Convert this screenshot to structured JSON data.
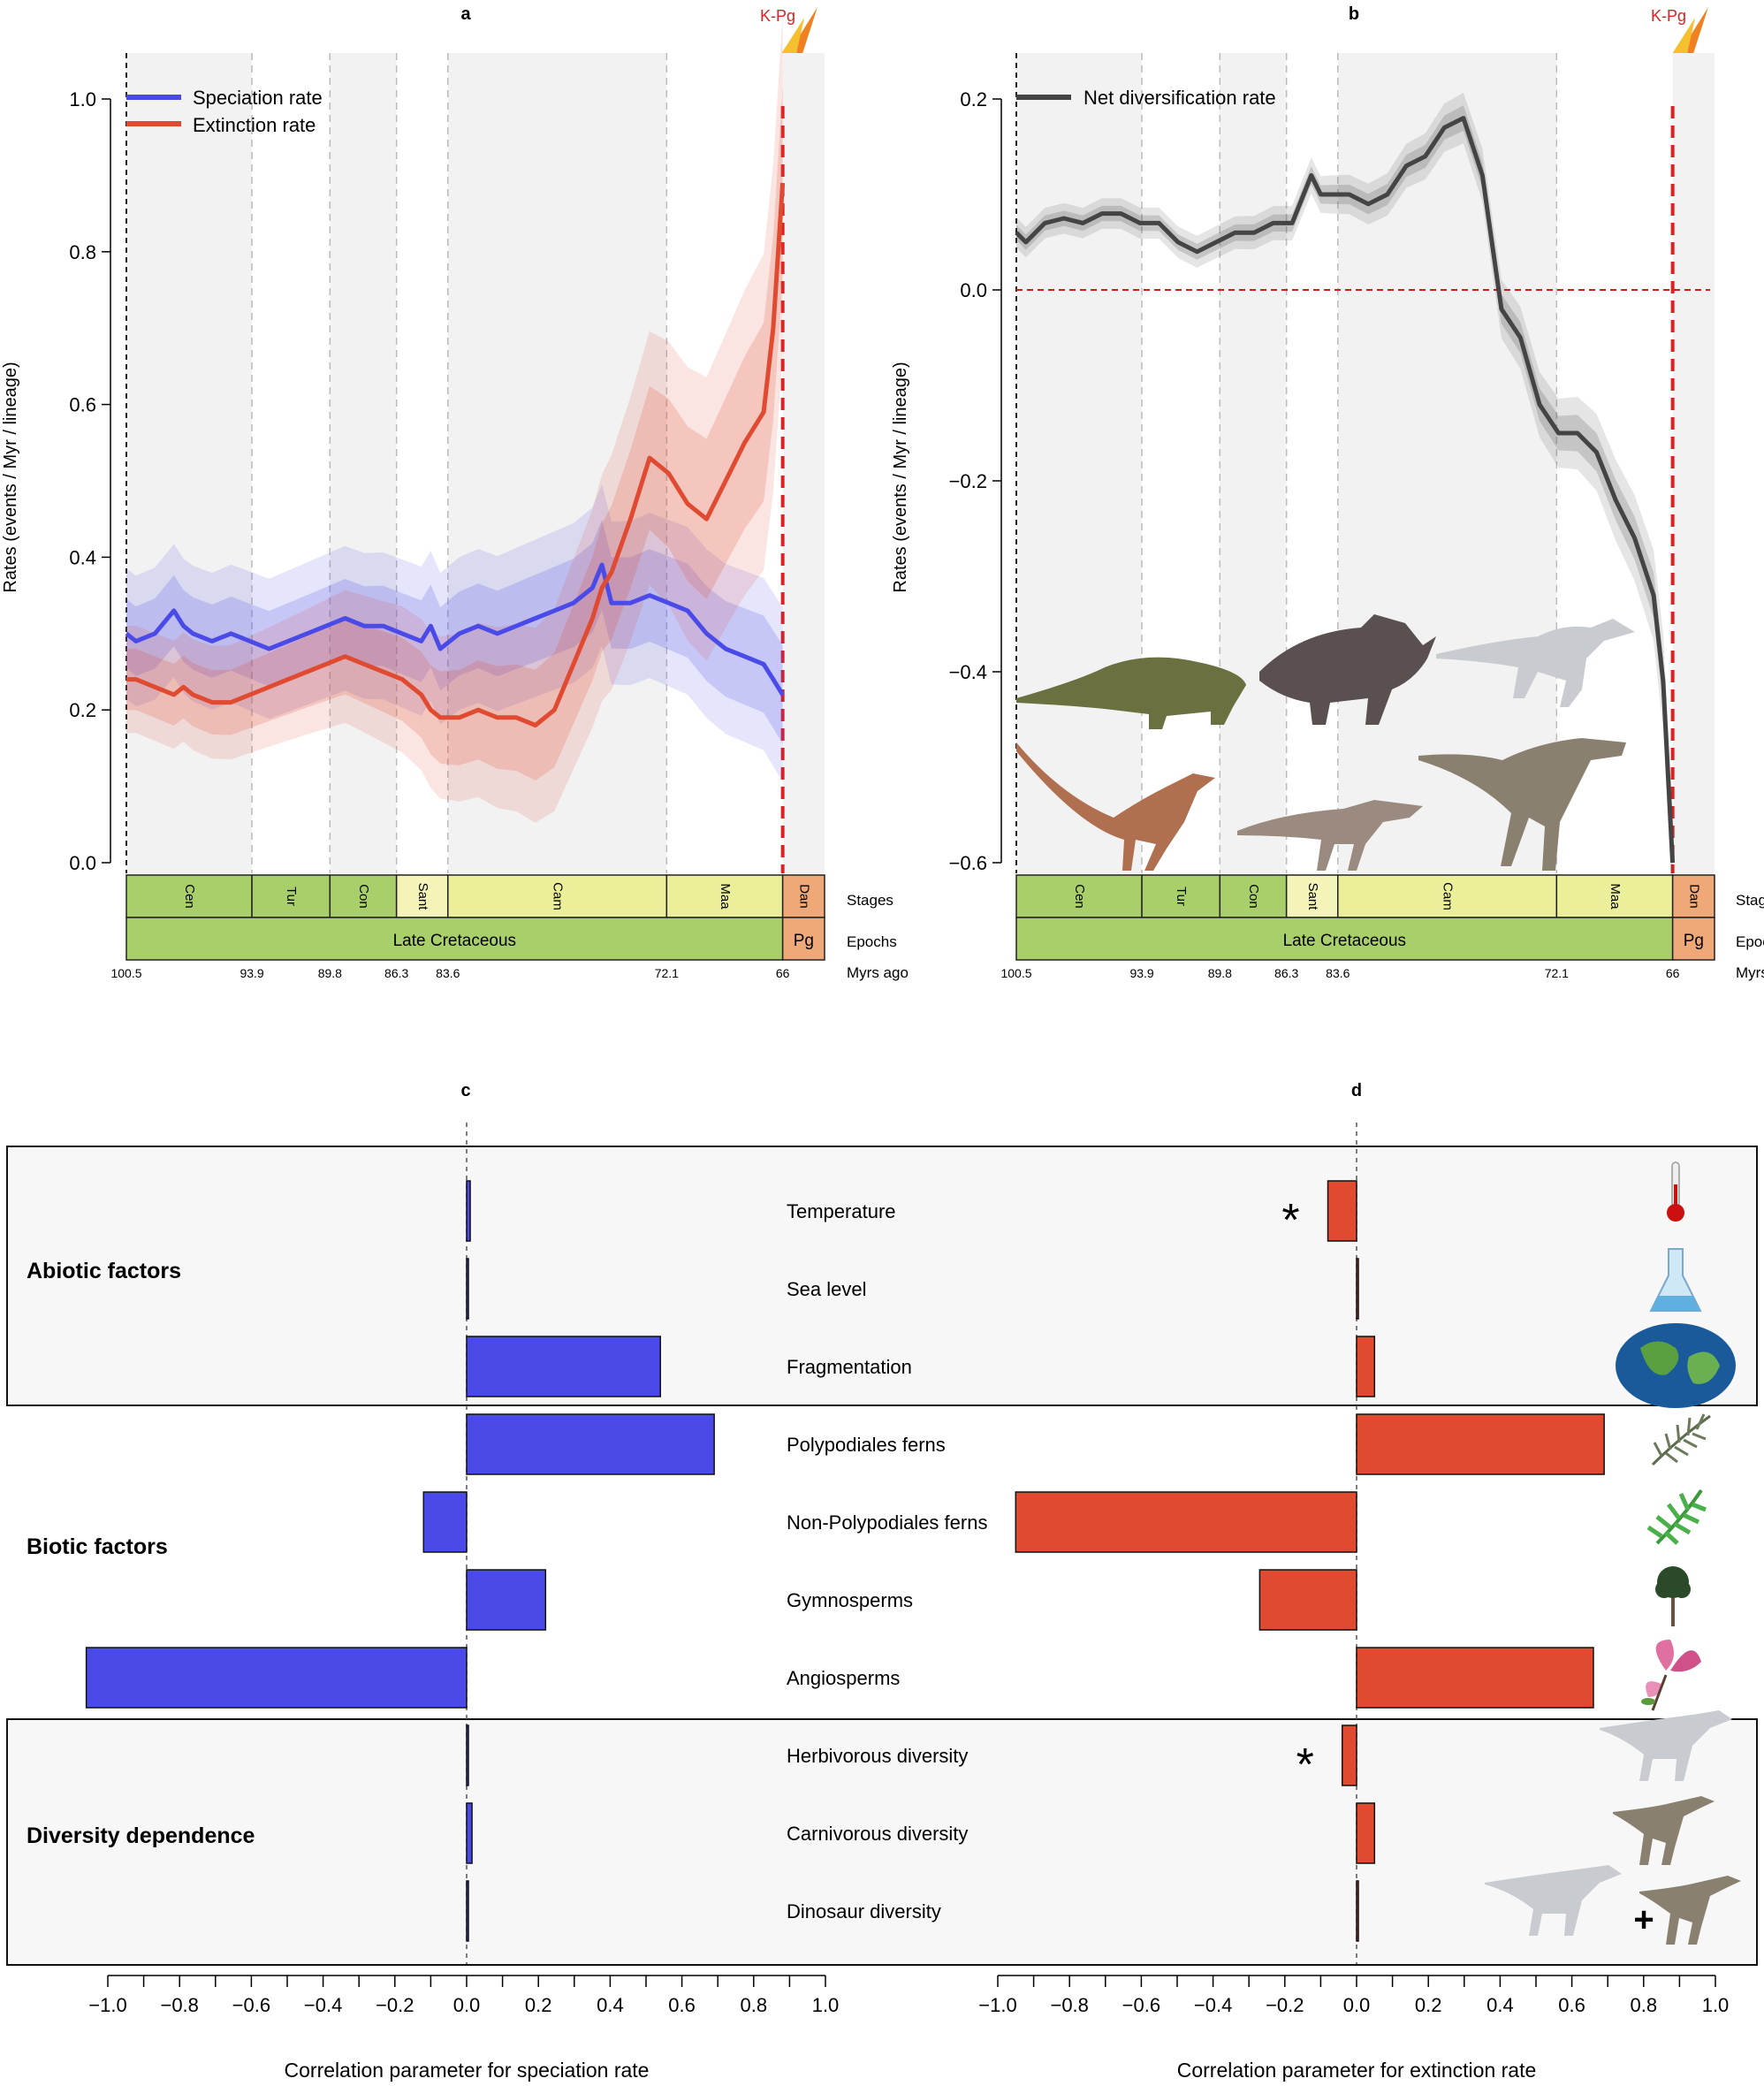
{
  "colors": {
    "speciation": "#4a4ae8",
    "extinction": "#e04a30",
    "net": "#444444",
    "stage_green": "#a8cf6a",
    "stage_yellow": "#ecef9a",
    "stage_pale": "#f4f4b8",
    "stage_orange": "#efa878",
    "panel_bg": "#f2f2f2",
    "zero_line": "#cc1f1f"
  },
  "timescale": {
    "stages": [
      {
        "name": "Cen",
        "start": 100.5,
        "end": 93.9
      },
      {
        "name": "Tur",
        "start": 93.9,
        "end": 89.8
      },
      {
        "name": "Con",
        "start": 89.8,
        "end": 86.3
      },
      {
        "name": "Sant",
        "start": 86.3,
        "end": 83.6
      },
      {
        "name": "Cam",
        "start": 83.6,
        "end": 72.1
      },
      {
        "name": "Maa",
        "start": 72.1,
        "end": 66
      },
      {
        "name": "Dan",
        "start": 66,
        "end": 63.8
      }
    ],
    "epochs": [
      {
        "name": "Late Cretaceous",
        "start": 100.5,
        "end": 66
      },
      {
        "name": "Pg",
        "start": 66,
        "end": 63.8
      }
    ],
    "ages": [
      "100.5",
      "93.9",
      "89.8",
      "86.3",
      "83.6",
      "72.1",
      "66"
    ],
    "row_labels": {
      "stages": "Stages",
      "epochs": "Epochs",
      "ages": "Myrs ago"
    }
  },
  "chart_data": [
    {
      "panel": "a",
      "type": "line",
      "event_label": "K-Pg",
      "ylabel": "Rates (events / Myr / lineage)",
      "ylim": [
        0,
        1.0
      ],
      "yticks": [
        "0.0",
        "0.2",
        "0.4",
        "0.6",
        "0.8",
        "1.0"
      ],
      "legend_position": "top-left",
      "x": [
        100.5,
        100,
        99,
        98,
        97.5,
        97,
        96,
        95,
        94,
        93,
        92,
        91,
        90,
        89,
        88,
        87,
        86,
        85,
        84.5,
        84,
        83,
        82,
        81,
        80,
        79,
        78,
        77,
        76,
        75.5,
        75,
        74,
        73,
        72,
        71,
        70,
        69,
        68,
        67,
        66.5,
        66
      ],
      "series": [
        {
          "name": "Speciation rate",
          "values": [
            0.3,
            0.29,
            0.3,
            0.33,
            0.31,
            0.3,
            0.29,
            0.3,
            0.29,
            0.28,
            0.29,
            0.3,
            0.31,
            0.32,
            0.31,
            0.31,
            0.3,
            0.29,
            0.31,
            0.28,
            0.3,
            0.31,
            0.3,
            0.31,
            0.32,
            0.33,
            0.34,
            0.36,
            0.39,
            0.34,
            0.34,
            0.35,
            0.34,
            0.33,
            0.3,
            0.28,
            0.27,
            0.26,
            0.24,
            0.22
          ]
        },
        {
          "name": "Extinction rate",
          "values": [
            0.24,
            0.24,
            0.23,
            0.22,
            0.23,
            0.22,
            0.21,
            0.21,
            0.22,
            0.23,
            0.24,
            0.25,
            0.26,
            0.27,
            0.26,
            0.25,
            0.24,
            0.22,
            0.2,
            0.19,
            0.19,
            0.2,
            0.19,
            0.19,
            0.18,
            0.2,
            0.26,
            0.32,
            0.36,
            0.38,
            0.45,
            0.53,
            0.51,
            0.47,
            0.45,
            0.5,
            0.55,
            0.59,
            0.7,
            0.89
          ]
        }
      ]
    },
    {
      "panel": "b",
      "type": "line",
      "event_label": "K-Pg",
      "ylabel": "Rates (events / Myr / lineage)",
      "ylim": [
        -0.7,
        0.22
      ],
      "yticks": [
        "−0.6",
        "−0.4",
        "−0.2",
        "0.0",
        "0.2"
      ],
      "legend_position": "top-left",
      "x": [
        100.5,
        100,
        99,
        98,
        97,
        96,
        95,
        94,
        93,
        92,
        91,
        90,
        89,
        88,
        87,
        86,
        85,
        84.5,
        84,
        83,
        82,
        81,
        80,
        79,
        78,
        77,
        76,
        75.5,
        75,
        74,
        73,
        72,
        71,
        70,
        69,
        68,
        67,
        66.5,
        66
      ],
      "series": [
        {
          "name": "Net diversification rate",
          "values": [
            0.06,
            0.05,
            0.07,
            0.075,
            0.07,
            0.08,
            0.08,
            0.07,
            0.07,
            0.05,
            0.04,
            0.05,
            0.06,
            0.06,
            0.07,
            0.07,
            0.12,
            0.1,
            0.1,
            0.1,
            0.09,
            0.1,
            0.13,
            0.14,
            0.17,
            0.18,
            0.12,
            0.05,
            -0.02,
            -0.05,
            -0.12,
            -0.15,
            -0.15,
            -0.17,
            -0.22,
            -0.26,
            -0.32,
            -0.41,
            -0.6
          ]
        }
      ],
      "reference_line": 0
    },
    {
      "panel": "c",
      "type": "bar",
      "orientation": "horizontal",
      "xlabel": "Correlation parameter for speciation rate",
      "xlim": [
        -1.1,
        1.0
      ],
      "xticks": [
        "−1.0",
        "−0.8",
        "−0.6",
        "−0.4",
        "−0.2",
        "0.0",
        "0.2",
        "0.4",
        "0.6",
        "0.8",
        "1.0"
      ],
      "categories": [
        "Temperature",
        "Sea level",
        "Fragmentation",
        "Polypodiales ferns",
        "Non-Polypodiales ferns",
        "Gymnosperms",
        "Angiosperms",
        "Herbivorous diversity",
        "Carnivorous diversity",
        "Dinosaur diversity"
      ],
      "values": [
        0.01,
        0.0,
        0.54,
        0.69,
        -0.12,
        0.22,
        -1.06,
        0.0,
        0.015,
        0.0
      ]
    },
    {
      "panel": "d",
      "type": "bar",
      "orientation": "horizontal",
      "xlabel": "Correlation parameter for extinction rate",
      "xlim": [
        -1.0,
        1.0
      ],
      "xticks": [
        "−1.0",
        "−0.8",
        "−0.6",
        "−0.4",
        "−0.2",
        "0.0",
        "0.2",
        "0.4",
        "0.6",
        "0.8",
        "1.0"
      ],
      "categories": [
        "Temperature",
        "Sea level",
        "Fragmentation",
        "Polypodiales ferns",
        "Non-Polypodiales ferns",
        "Gymnosperms",
        "Angiosperms",
        "Herbivorous diversity",
        "Carnivorous diversity",
        "Dinosaur diversity"
      ],
      "values": [
        -0.08,
        0.0,
        0.05,
        0.69,
        -0.95,
        -0.27,
        0.66,
        -0.04,
        0.05,
        0.0
      ],
      "significant": [
        "Temperature",
        "Herbivorous diversity"
      ],
      "significance_marker": "*"
    }
  ],
  "factor_groups": [
    {
      "label": "Abiotic factors",
      "members": [
        "Temperature",
        "Sea level",
        "Fragmentation"
      ],
      "boxed": true
    },
    {
      "label": "Biotic factors",
      "members": [
        "Polypodiales ferns",
        "Non-Polypodiales ferns",
        "Gymnosperms",
        "Angiosperms"
      ],
      "boxed": false
    },
    {
      "label": "Diversity dependence",
      "members": [
        "Herbivorous diversity",
        "Carnivorous diversity",
        "Dinosaur diversity"
      ],
      "boxed": true
    }
  ],
  "plus_sign": "+",
  "icons": [
    "meteor-icon",
    "thermometer-icon",
    "flask-icon",
    "globe-icon",
    "fern-icon",
    "palm-frond-icon",
    "tree-icon",
    "magnolia-flower-icon",
    "hadrosaur-icon",
    "theropod-icon",
    "ankylosaur-icon",
    "ceratopsian-icon",
    "dromaeosaur-icon"
  ]
}
